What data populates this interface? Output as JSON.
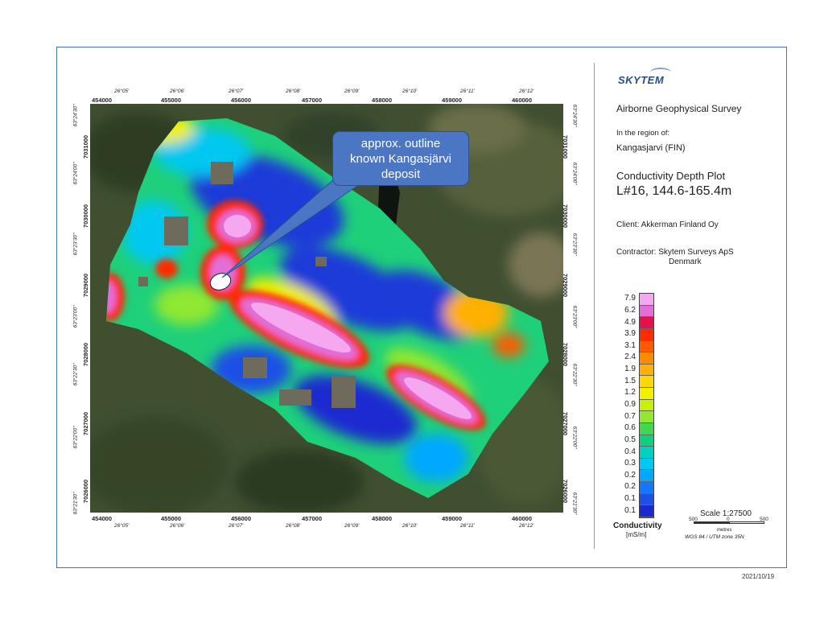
{
  "map": {
    "x_ticks_utm": [
      "454000",
      "455000",
      "456000",
      "457000",
      "458000",
      "459000",
      "460000"
    ],
    "x_ticks_geo": [
      "26°05'",
      "26°06'",
      "26°07'",
      "26°08'",
      "26°09'",
      "26°10'",
      "26°11'",
      "26°12'"
    ],
    "y_ticks_utm": [
      "7031000",
      "7030000",
      "7029000",
      "7028000",
      "7027000",
      "7026000"
    ],
    "y_ticks_geo": [
      "63°24'30\"",
      "63°24'00\"",
      "63°23'30\"",
      "63°23'00\"",
      "63°22'30\"",
      "63°22'00\"",
      "63°21'30\""
    ],
    "callout": {
      "line1": "approx. outline",
      "line2": "known Kangasjärvi",
      "line3": "deposit"
    }
  },
  "panel": {
    "logo": "SKYTEM",
    "survey_title": "Airborne Geophysical Survey",
    "region_label": "In the region of:",
    "region": "Kangasjarvi (FIN)",
    "plot_title": "Conductivity Depth Plot",
    "plot_subtitle": "L#16, 144.6-165.4m",
    "client": "Client: Akkerman Finland Oy",
    "contractor_line1": "Contractor: Skytem Surveys ApS",
    "contractor_line2": "Denmark"
  },
  "legend": {
    "title": "Conductivity",
    "unit": "[mS/m]",
    "values": [
      "7.9",
      "6.2",
      "4.9",
      "3.9",
      "3.1",
      "2.4",
      "1.9",
      "1.5",
      "1.2",
      "0.9",
      "0.7",
      "0.6",
      "0.5",
      "0.4",
      "0.3",
      "0.2",
      "0.2",
      "0.1",
      "0.1"
    ],
    "colors": [
      "#f5a8f0",
      "#e070d8",
      "#e8104c",
      "#ff2a00",
      "#ff5a00",
      "#ff8a00",
      "#ffb000",
      "#ffd800",
      "#f0f000",
      "#c8f000",
      "#90e830",
      "#40d850",
      "#10d080",
      "#00d0c0",
      "#00c8f0",
      "#00a8ff",
      "#1478ff",
      "#1e50e6",
      "#1a2ad0"
    ]
  },
  "scale": {
    "title": "Scale 1:27500",
    "left": "500",
    "mid": "0",
    "right": "500",
    "unit": "metres",
    "projection": "WGS 84 / UTM zone 35N"
  },
  "date": "2021/10/19"
}
